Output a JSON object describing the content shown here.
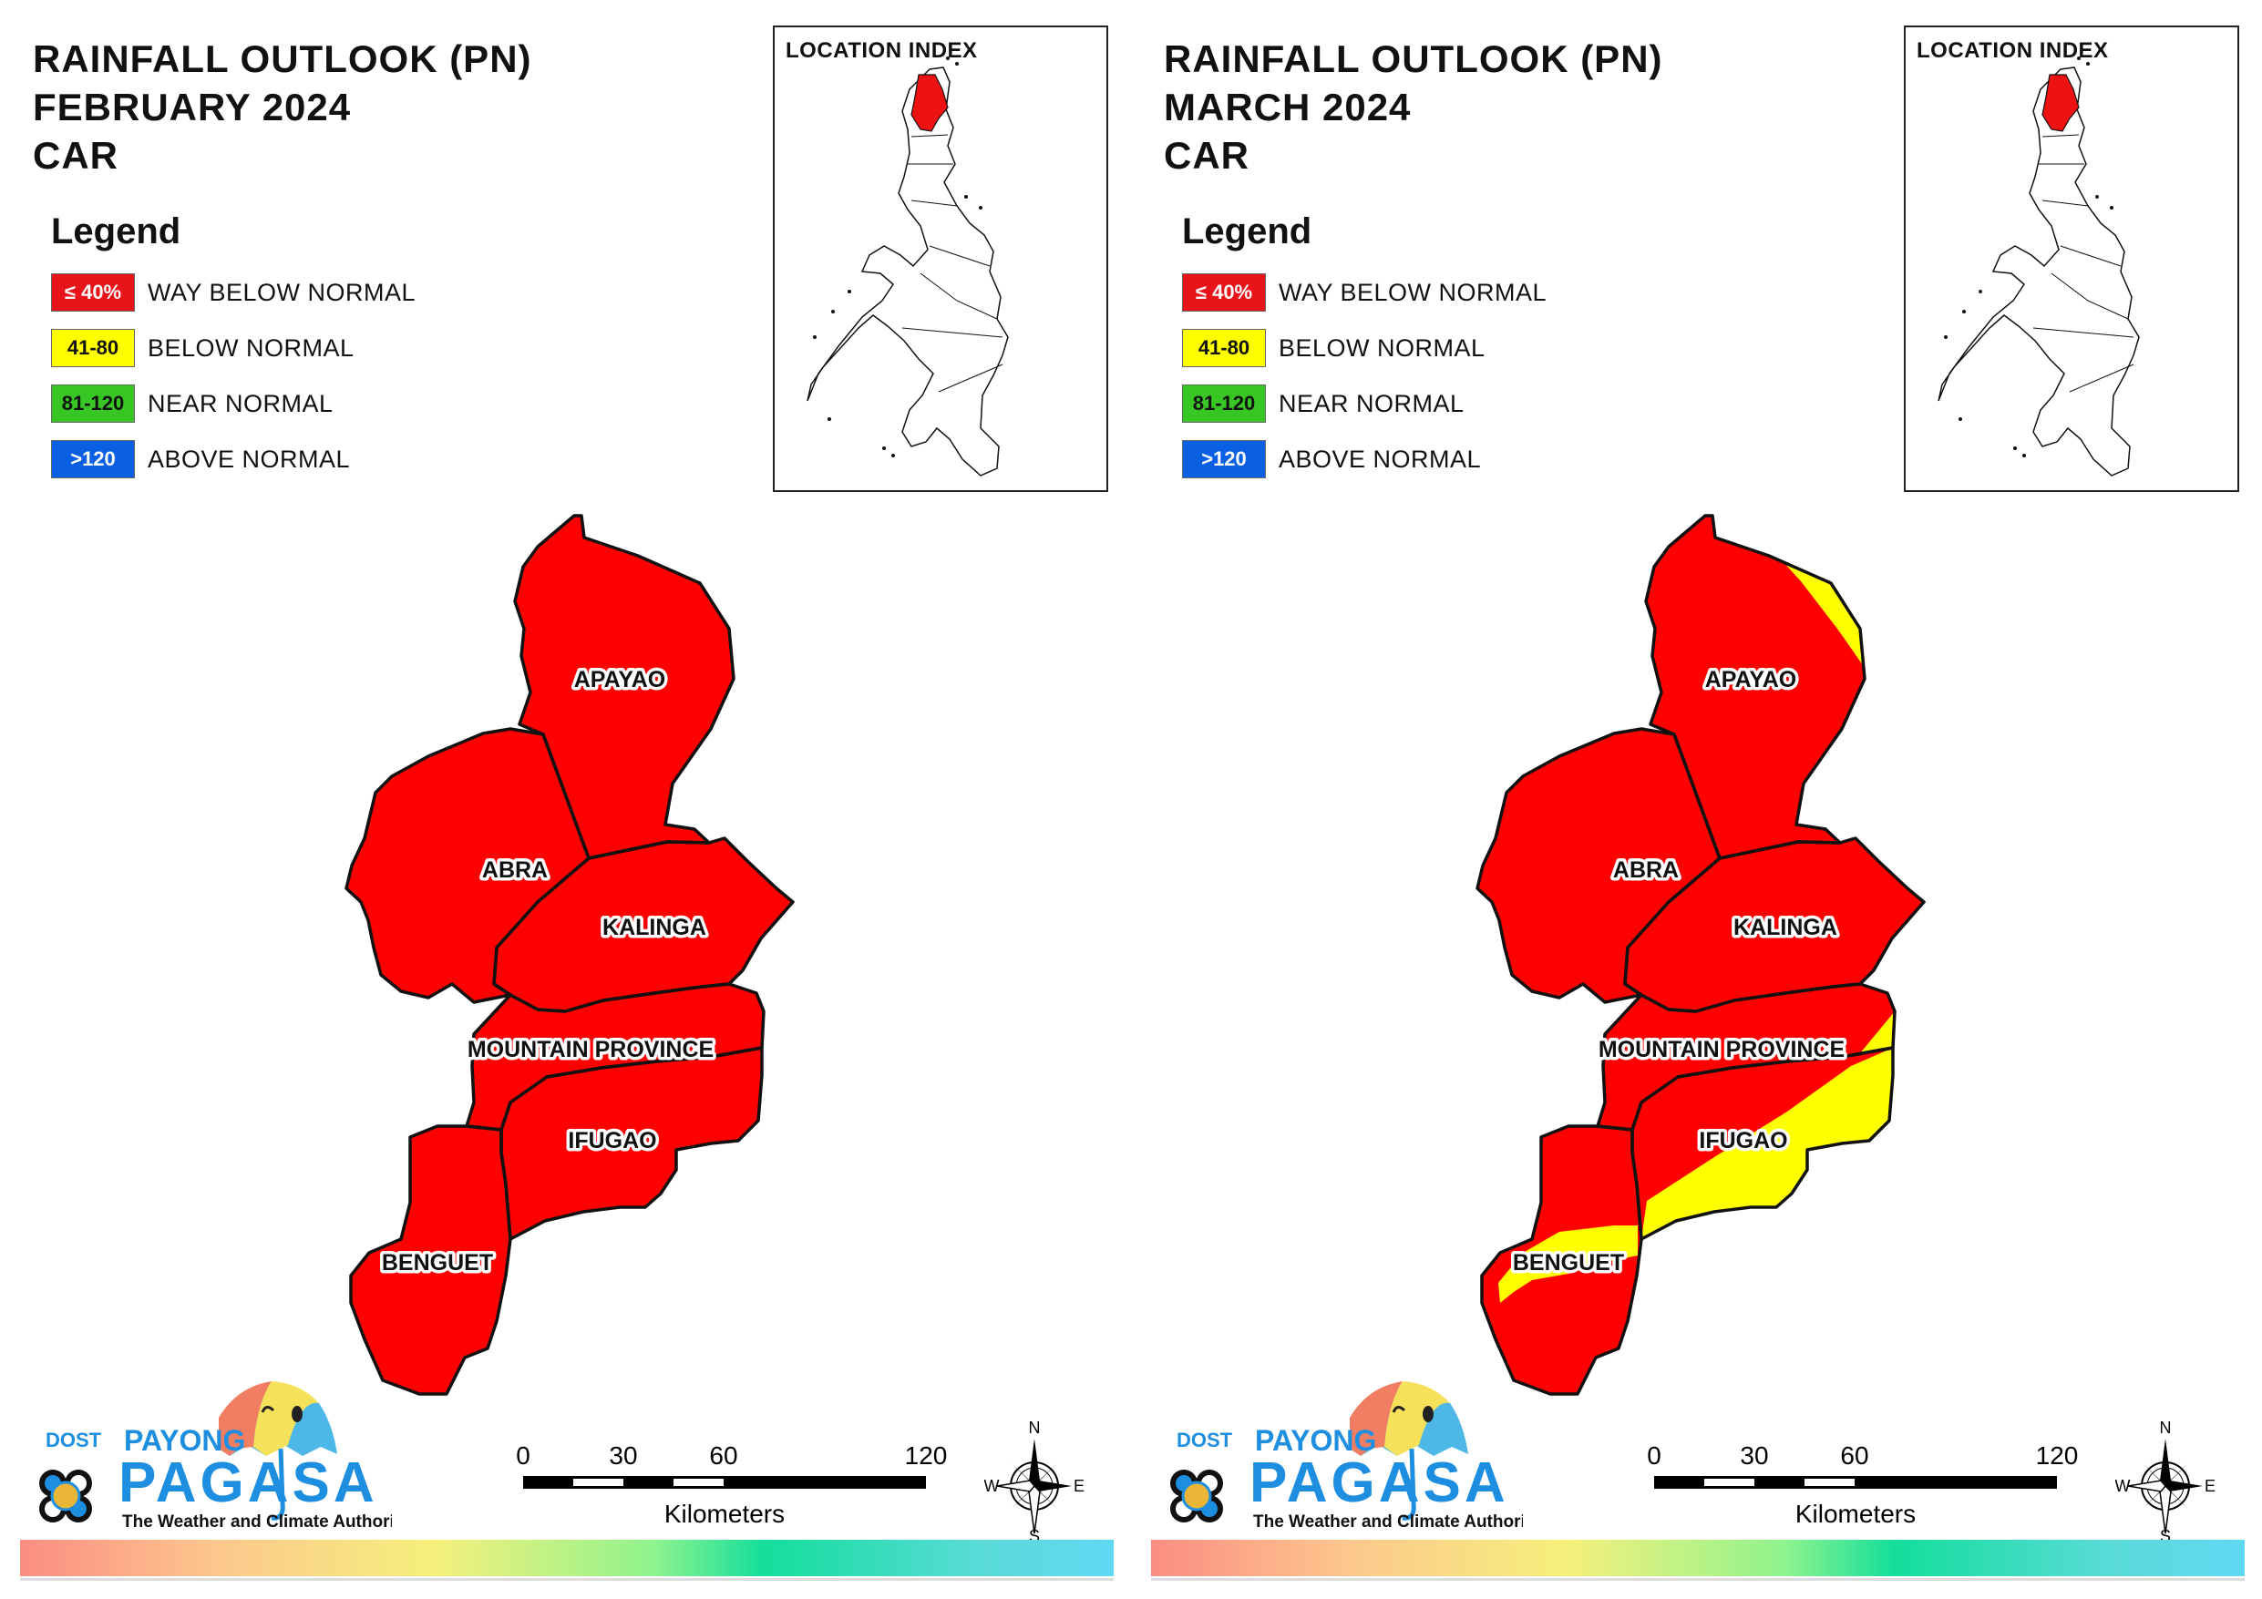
{
  "panels": [
    {
      "title": [
        "RAINFALL OUTLOOK (PN)",
        "FEBRUARY 2024",
        "CAR"
      ],
      "legend_title": "Legend",
      "legend": [
        {
          "swatch": "≤ 40%",
          "label": "WAY BELOW NORMAL",
          "color": "#e8141a",
          "text_color": "#ffffff"
        },
        {
          "swatch": "41-80",
          "label": "BELOW NORMAL",
          "color": "#ffff00",
          "text_color": "#111111"
        },
        {
          "swatch": "81-120",
          "label": "NEAR NORMAL",
          "color": "#37c623",
          "text_color": "#111111"
        },
        {
          "swatch": ">120",
          "label": "ABOVE NORMAL",
          "color": "#0a5fe3",
          "text_color": "#ffffff"
        }
      ],
      "inset_title": "LOCATION INDEX",
      "provinces": {
        "apayao": "APAYAO",
        "abra": "ABRA",
        "kalinga": "KALINGA",
        "mountain_province": "MOUNTAIN PROVINCE",
        "ifugao": "IFUGAO",
        "benguet": "BENGUET"
      },
      "outlook": {
        "apayao": "WAY BELOW NORMAL",
        "abra": "WAY BELOW NORMAL",
        "kalinga": "WAY BELOW NORMAL",
        "mountain_province": "WAY BELOW NORMAL",
        "ifugao": "WAY BELOW NORMAL",
        "benguet": "WAY BELOW NORMAL"
      },
      "show_below_normal_zones": false
    },
    {
      "title": [
        "RAINFALL OUTLOOK (PN)",
        "MARCH 2024",
        "CAR"
      ],
      "legend_title": "Legend",
      "legend": [
        {
          "swatch": "≤ 40%",
          "label": "WAY BELOW NORMAL",
          "color": "#e8141a",
          "text_color": "#ffffff"
        },
        {
          "swatch": "41-80",
          "label": "BELOW NORMAL",
          "color": "#ffff00",
          "text_color": "#111111"
        },
        {
          "swatch": "81-120",
          "label": "NEAR NORMAL",
          "color": "#37c623",
          "text_color": "#111111"
        },
        {
          "swatch": ">120",
          "label": "ABOVE NORMAL",
          "color": "#0a5fe3",
          "text_color": "#ffffff"
        }
      ],
      "inset_title": "LOCATION INDEX",
      "provinces": {
        "apayao": "APAYAO",
        "abra": "ABRA",
        "kalinga": "KALINGA",
        "mountain_province": "MOUNTAIN PROVINCE",
        "ifugao": "IFUGAO",
        "benguet": "BENGUET"
      },
      "outlook": {
        "apayao": "WAY BELOW NORMAL / BELOW NORMAL (east)",
        "abra": "WAY BELOW NORMAL",
        "kalinga": "WAY BELOW NORMAL",
        "mountain_province": "WAY BELOW NORMAL / BELOW NORMAL (east)",
        "ifugao": "BELOW NORMAL / WAY BELOW NORMAL (west)",
        "benguet": "WAY BELOW NORMAL / BELOW NORMAL (central)"
      },
      "show_below_normal_zones": true
    }
  ],
  "scale_bar": {
    "ticks": [
      "0",
      "30",
      "60",
      "120"
    ],
    "unit": "Kilometers"
  },
  "north_arrow": {
    "n": "N",
    "s": "S",
    "e": "E",
    "w": "W"
  },
  "logo": {
    "dost": "DOST",
    "payong": "PAYONG",
    "pagasa": "PAGASA",
    "tagline": "The Weather and Climate Authority"
  },
  "colors": {
    "way_below": "#ff0000",
    "below": "#ffff00",
    "outline": "#111111",
    "logo_blue": "#1e8fe0"
  }
}
